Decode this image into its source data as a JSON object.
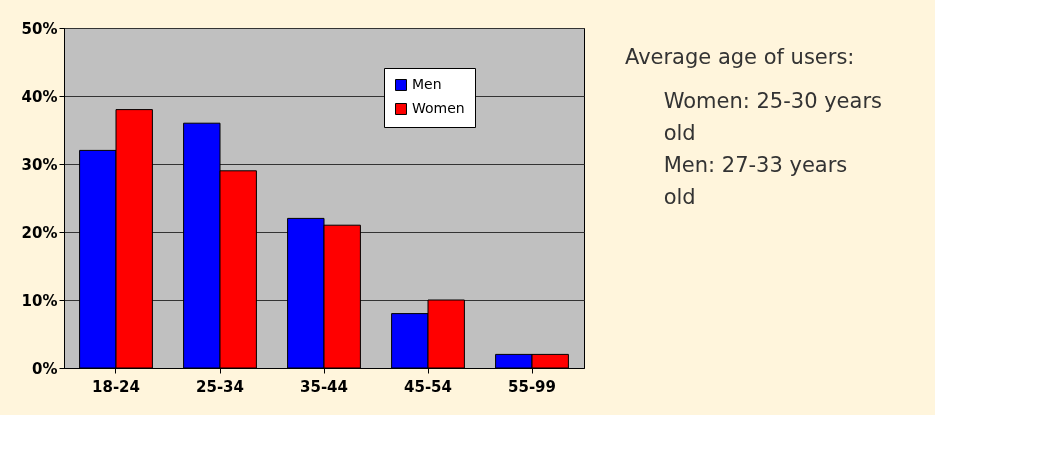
{
  "chart_data": {
    "type": "bar",
    "categories": [
      "18-24",
      "25-34",
      "35-44",
      "45-54",
      "55-99"
    ],
    "series": [
      {
        "name": "Men",
        "color": "#0000ff",
        "values": [
          32,
          36,
          22,
          8,
          2
        ]
      },
      {
        "name": "Women",
        "color": "#ff0000",
        "values": [
          38,
          29,
          21,
          10,
          2
        ]
      }
    ],
    "ylim": [
      0,
      50
    ],
    "yticks": [
      {
        "value": 0,
        "label": "0%"
      },
      {
        "value": 10,
        "label": "10%"
      },
      {
        "value": 20,
        "label": "20%"
      },
      {
        "value": 30,
        "label": "30%"
      },
      {
        "value": 40,
        "label": "40%"
      },
      {
        "value": 50,
        "label": "50%"
      }
    ],
    "grid": "y",
    "legend": "top right",
    "annotations": [
      "Average age of users:",
      "Women: 25-30 years old",
      "Men: 27-33 years old"
    ]
  }
}
